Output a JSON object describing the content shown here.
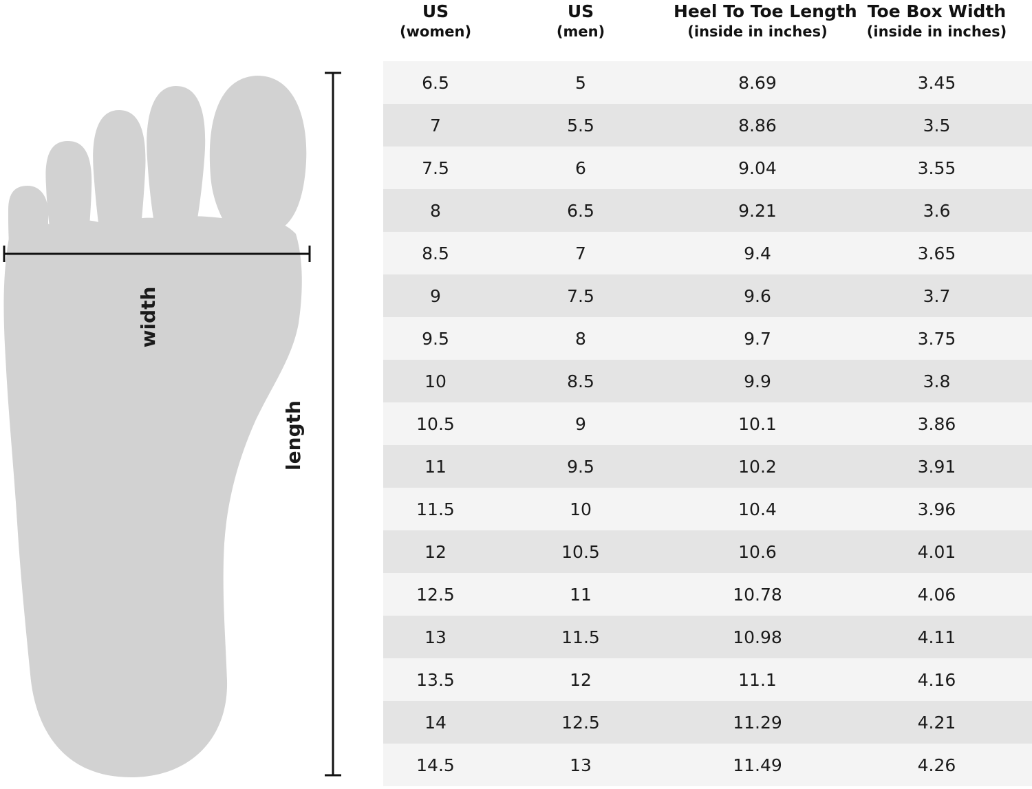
{
  "figure": {
    "foot_color": "#d2d2d2",
    "line_color": "#111111",
    "width_label": "width",
    "length_label": "length"
  },
  "table": {
    "headers": [
      {
        "main": "US",
        "sub": "(women)"
      },
      {
        "main": "US",
        "sub": "(men)"
      },
      {
        "main": "Heel To Toe Length",
        "sub": "(inside in inches)"
      },
      {
        "main": "Toe Box Width",
        "sub": "(inside in inches)"
      }
    ],
    "rows": [
      [
        "6.5",
        "5",
        "8.69",
        "3.45"
      ],
      [
        "7",
        "5.5",
        "8.86",
        "3.5"
      ],
      [
        "7.5",
        "6",
        "9.04",
        "3.55"
      ],
      [
        "8",
        "6.5",
        "9.21",
        "3.6"
      ],
      [
        "8.5",
        "7",
        "9.4",
        "3.65"
      ],
      [
        "9",
        "7.5",
        "9.6",
        "3.7"
      ],
      [
        "9.5",
        "8",
        "9.7",
        "3.75"
      ],
      [
        "10",
        "8.5",
        "9.9",
        "3.8"
      ],
      [
        "10.5",
        "9",
        "10.1",
        "3.86"
      ],
      [
        "11",
        "9.5",
        "10.2",
        "3.91"
      ],
      [
        "11.5",
        "10",
        "10.4",
        "3.96"
      ],
      [
        "12",
        "10.5",
        "10.6",
        "4.01"
      ],
      [
        "12.5",
        "11",
        "10.78",
        "4.06"
      ],
      [
        "13",
        "11.5",
        "10.98",
        "4.11"
      ],
      [
        "13.5",
        "12",
        "11.1",
        "4.16"
      ],
      [
        "14",
        "12.5",
        "11.29",
        "4.21"
      ],
      [
        "14.5",
        "13",
        "11.49",
        "4.26"
      ]
    ],
    "row_colors": [
      "#f4f4f4",
      "#e4e4e4"
    ]
  }
}
